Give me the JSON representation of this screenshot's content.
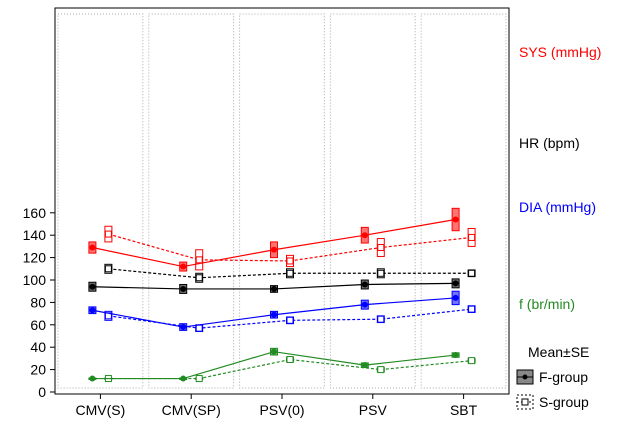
{
  "chart_data": {
    "type": "line",
    "title": "",
    "xlabel": "",
    "ylabel": "",
    "ylim": [
      0,
      170
    ],
    "yticks": [
      0,
      20,
      40,
      60,
      80,
      100,
      120,
      140,
      160
    ],
    "ytick_labels": [
      "0",
      "20",
      "40",
      "60",
      "80",
      "100",
      "120",
      "140",
      "160"
    ],
    "categories": [
      "CMV(S)",
      "CMV(SP)",
      "PSV(0)",
      "PSV",
      "SBT"
    ],
    "grid": false,
    "legend": {
      "placement": "bottom-right",
      "title": "Mean±SE",
      "entries": [
        {
          "label": "F-group",
          "style": "solid",
          "marker": "filled-circle"
        },
        {
          "label": "S-group",
          "style": "dashed",
          "marker": "open-square"
        }
      ]
    },
    "measures": [
      {
        "label": "SYS (mmHg)",
        "color": "#ff0000",
        "f_group": {
          "mean": [
            129,
            112,
            127,
            140,
            154
          ],
          "se": [
            5,
            4,
            7,
            7,
            10
          ]
        },
        "s_group": {
          "mean": [
            141,
            118,
            117,
            129,
            138
          ],
          "se": [
            7,
            9,
            5,
            8,
            8
          ]
        }
      },
      {
        "label": "HR (bpm)",
        "color": "#000000",
        "f_group": {
          "mean": [
            94,
            92,
            92,
            96,
            97
          ],
          "se": [
            4,
            4,
            3,
            4,
            4
          ]
        },
        "s_group": {
          "mean": [
            110,
            102,
            106,
            106,
            106
          ],
          "se": [
            4,
            4,
            4,
            4,
            3
          ]
        }
      },
      {
        "label": "DIA (mmHg)",
        "color": "#0000ff",
        "f_group": {
          "mean": [
            73,
            58,
            69,
            78,
            84
          ],
          "se": [
            3,
            3,
            3,
            4,
            6
          ]
        },
        "s_group": {
          "mean": [
            68,
            57,
            64,
            65,
            74
          ],
          "se": [
            4,
            3,
            3,
            3,
            3
          ]
        }
      },
      {
        "label": "f (br/min)",
        "color": "#228b22",
        "f_group": {
          "mean": [
            12,
            12,
            36,
            24,
            33
          ],
          "se": [
            0.5,
            0.5,
            3,
            2,
            2
          ]
        },
        "s_group": {
          "mean": [
            12,
            12,
            29,
            20,
            28
          ],
          "se": [
            0.5,
            0.5,
            2,
            2,
            2
          ]
        }
      }
    ]
  }
}
